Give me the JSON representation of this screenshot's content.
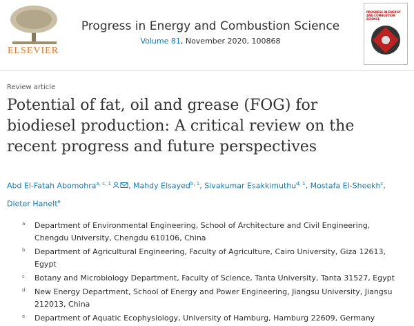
{
  "header": {
    "publisher": "ELSEVIER",
    "journal": "Progress in Energy and Combustion Science",
    "volume": "Volume 81",
    "issue_info": ", November 2020, 100868",
    "cover_title": "PROGRESS IN ENERGY AND COMBUSTION SCIENCE"
  },
  "article_type": "Review article",
  "title": "Potential of fat, oil and grease (FOG) for biodiesel production: A critical review on the recent progress and future perspectives",
  "author_separator": ",",
  "authors": [
    {
      "name": "Abd El-Fatah Abomohra",
      "sup": "a, c, 1"
    },
    {
      "name": "Mahdy Elsayed",
      "sup": "b, 1"
    },
    {
      "name": "Sivakumar Esakkimuthu",
      "sup": "d, 1"
    },
    {
      "name": "Mostafa El-Sheekh",
      "sup": "c"
    },
    {
      "name": "Dieter Hanelt",
      "sup": "e"
    }
  ],
  "affiliations": [
    {
      "label": "a",
      "text": "Department of Environmental Engineering, School of Architecture and Civil Engineering, Chengdu University, Chengdu 610106, China"
    },
    {
      "label": "b",
      "text": "Department of Agricultural Engineering, Faculty of Agriculture, Cairo University, Giza 12613, Egypt"
    },
    {
      "label": "c",
      "text": "Botany and Microbiology Department, Faculty of Science, Tanta University, Tanta 31527, Egypt"
    },
    {
      "label": "d",
      "text": "New Energy Department, School of Energy and Power Engineering, Jiangsu University, Jiangsu 212013, China"
    },
    {
      "label": "e",
      "text": "Department of Aquatic Ecophysiology, University of Hamburg, Hamburg 22609, Germany"
    }
  ]
}
